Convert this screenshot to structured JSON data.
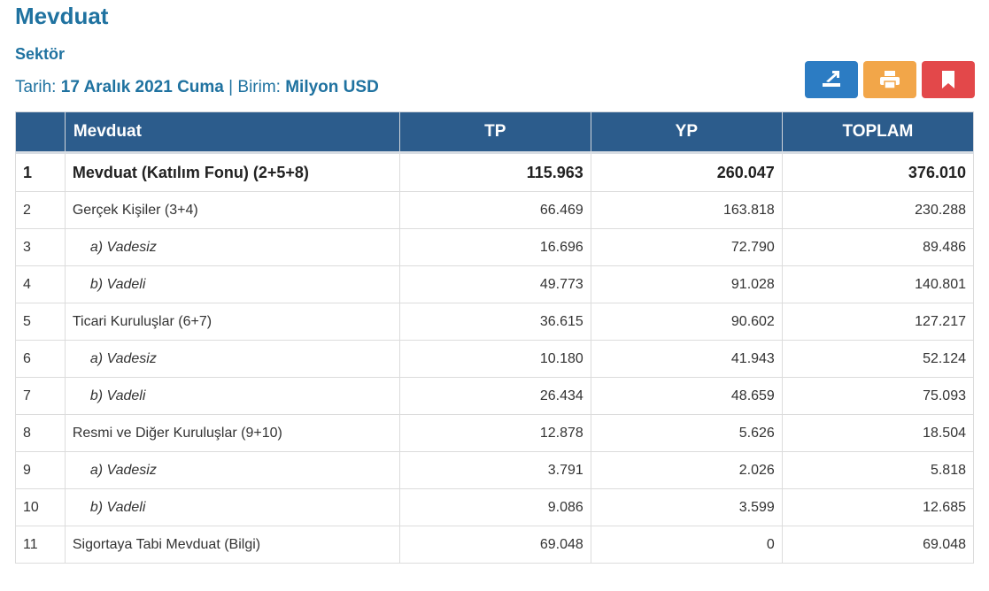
{
  "page": {
    "title": "Mevduat",
    "subtitle": "Sektör",
    "date_label": "Tarih:",
    "date_value": "17 Aralık 2021 Cuma",
    "separator": "|",
    "unit_label": "Birim:",
    "unit_value": "Milyon USD"
  },
  "toolbar": {
    "export_icon": "export-icon",
    "print_icon": "printer-icon",
    "bookmark_icon": "bookmark-icon",
    "colors": {
      "export": "#2c7cc3",
      "print": "#f2a649",
      "bookmark": "#e3484a"
    }
  },
  "table": {
    "headers": [
      "",
      "Mevduat",
      "TP",
      "YP",
      "TOPLAM"
    ],
    "rows": [
      {
        "no": "1",
        "label": "Mevduat (Katılım Fonu) (2+5+8)",
        "tp": "115.963",
        "yp": "260.047",
        "toplam": "376.010"
      },
      {
        "no": "2",
        "label": "Gerçek Kişiler (3+4)",
        "tp": "66.469",
        "yp": "163.818",
        "toplam": "230.288"
      },
      {
        "no": "3",
        "label": "a) Vadesiz",
        "tp": "16.696",
        "yp": "72.790",
        "toplam": "89.486"
      },
      {
        "no": "4",
        "label": "b) Vadeli",
        "tp": "49.773",
        "yp": "91.028",
        "toplam": "140.801"
      },
      {
        "no": "5",
        "label": "Ticari Kuruluşlar (6+7)",
        "tp": "36.615",
        "yp": "90.602",
        "toplam": "127.217"
      },
      {
        "no": "6",
        "label": "a) Vadesiz",
        "tp": "10.180",
        "yp": "41.943",
        "toplam": "52.124"
      },
      {
        "no": "7",
        "label": "b) Vadeli",
        "tp": "26.434",
        "yp": "48.659",
        "toplam": "75.093"
      },
      {
        "no": "8",
        "label": "Resmi ve Diğer Kuruluşlar (9+10)",
        "tp": "12.878",
        "yp": "5.626",
        "toplam": "18.504"
      },
      {
        "no": "9",
        "label": "a) Vadesiz",
        "tp": "3.791",
        "yp": "2.026",
        "toplam": "5.818"
      },
      {
        "no": "10",
        "label": "b) Vadeli",
        "tp": "9.086",
        "yp": "3.599",
        "toplam": "12.685"
      },
      {
        "no": "11",
        "label": "Sigortaya Tabi Mevduat (Bilgi)",
        "tp": "69.048",
        "yp": "0",
        "toplam": "69.048"
      }
    ]
  }
}
